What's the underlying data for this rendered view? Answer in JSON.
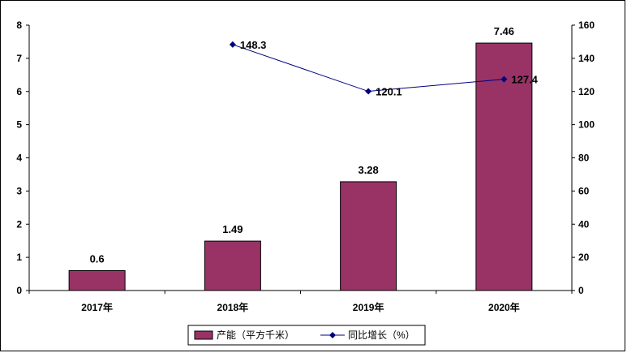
{
  "chart_data": {
    "type": "bar+line",
    "categories": [
      "2017年",
      "2018年",
      "2019年",
      "2020年"
    ],
    "series": [
      {
        "name": "产能（平方千米）",
        "type": "bar",
        "axis": "left",
        "values": [
          0.6,
          1.49,
          3.28,
          7.46
        ],
        "labels": [
          "0.6",
          "1.49",
          "3.28",
          "7.46"
        ],
        "color": "#993366"
      },
      {
        "name": "同比增长（%）",
        "type": "line",
        "axis": "right",
        "values": [
          null,
          148.3,
          120.1,
          127.4
        ],
        "labels": [
          "",
          "148.3",
          "120.1",
          "127.4"
        ],
        "color": "#000080"
      }
    ],
    "y_left": {
      "min": 0,
      "max": 8,
      "ticks": [
        0,
        1,
        2,
        3,
        4,
        5,
        6,
        7,
        8
      ]
    },
    "y_right": {
      "min": 0,
      "max": 160,
      "ticks": [
        0,
        20,
        40,
        60,
        80,
        100,
        120,
        140,
        160
      ]
    },
    "grid": false,
    "legend_position": "bottom"
  }
}
